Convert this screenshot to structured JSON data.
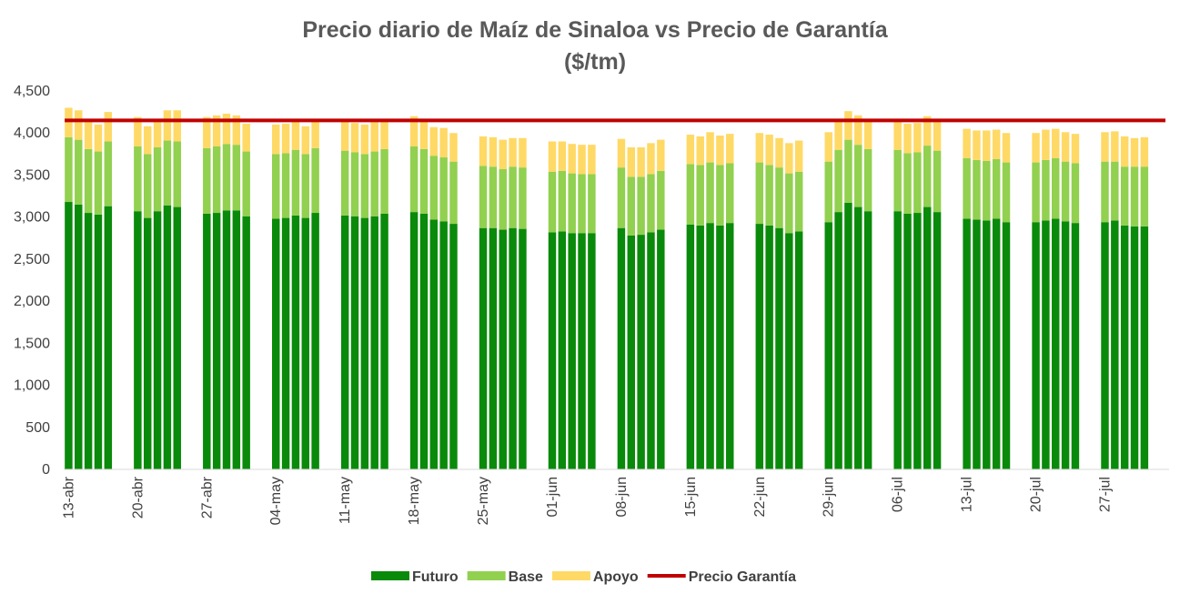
{
  "chart_data": {
    "type": "bar",
    "stacked": true,
    "title": "Precio diario de Maíz de Sinaloa vs Precio de Garantía",
    "subtitle": "($/tm)",
    "xlabel": "",
    "ylabel": "",
    "ylim": [
      0,
      4500
    ],
    "y_ticks": [
      "0",
      "500",
      "1,000",
      "1,500",
      "2,000",
      "2,500",
      "3,000",
      "3,500",
      "4,000",
      "4,500"
    ],
    "grid": false,
    "legend_position": "bottom",
    "x_tick_labels": [
      "13-abr",
      "20-abr",
      "27-abr",
      "04-may",
      "11-may",
      "18-may",
      "25-may",
      "01-jun",
      "08-jun",
      "15-jun",
      "22-jun",
      "29-jun",
      "06-jul",
      "13-jul",
      "20-jul",
      "27-jul"
    ],
    "colors": {
      "Futuro": "#0a8a0a",
      "Base": "#92d050",
      "Apoyo": "#ffd966",
      "Precio Garantía": "#c00000"
    },
    "weeks": [
      {
        "label": "13-abr",
        "futuro": [
          3180,
          3150,
          3050,
          3030,
          3130
        ],
        "base": [
          770,
          770,
          760,
          750,
          770
        ],
        "apoyo": [
          350,
          350,
          330,
          320,
          350
        ]
      },
      {
        "label": "20-abr",
        "futuro": [
          3070,
          2990,
          3070,
          3140,
          3120
        ],
        "base": [
          770,
          760,
          760,
          770,
          780
        ],
        "apoyo": [
          350,
          330,
          330,
          360,
          370
        ]
      },
      {
        "label": "27-abr",
        "futuro": [
          3040,
          3050,
          3080,
          3080,
          3010
        ],
        "base": [
          780,
          790,
          790,
          780,
          770
        ],
        "apoyo": [
          370,
          370,
          360,
          350,
          330
        ]
      },
      {
        "label": "04-may",
        "futuro": [
          2980,
          2990,
          3020,
          2990,
          3050
        ],
        "base": [
          770,
          770,
          780,
          760,
          770
        ],
        "apoyo": [
          350,
          350,
          350,
          330,
          350
        ]
      },
      {
        "label": "11-may",
        "futuro": [
          3020,
          3010,
          2990,
          3010,
          3040
        ],
        "base": [
          770,
          760,
          760,
          770,
          770
        ],
        "apoyo": [
          350,
          350,
          350,
          350,
          350
        ]
      },
      {
        "label": "18-may",
        "futuro": [
          3060,
          3040,
          2970,
          2950,
          2920
        ],
        "base": [
          780,
          770,
          760,
          760,
          740
        ],
        "apoyo": [
          360,
          340,
          340,
          350,
          340
        ]
      },
      {
        "label": "25-may",
        "futuro": [
          2870,
          2870,
          2850,
          2870,
          2860
        ],
        "base": [
          740,
          730,
          720,
          730,
          730
        ],
        "apoyo": [
          350,
          350,
          350,
          340,
          350
        ]
      },
      {
        "label": "01-jun",
        "futuro": [
          2820,
          2830,
          2810,
          2810,
          2810
        ],
        "base": [
          720,
          720,
          710,
          700,
          700
        ],
        "apoyo": [
          360,
          350,
          350,
          350,
          350
        ]
      },
      {
        "label": "08-jun",
        "futuro": [
          2870,
          2780,
          2790,
          2820,
          2850
        ],
        "base": [
          720,
          700,
          690,
          690,
          700
        ],
        "apoyo": [
          340,
          350,
          350,
          370,
          370
        ]
      },
      {
        "label": "15-jun",
        "futuro": [
          2910,
          2900,
          2930,
          2900,
          2930
        ],
        "base": [
          720,
          720,
          720,
          720,
          710
        ],
        "apoyo": [
          350,
          340,
          360,
          350,
          350
        ]
      },
      {
        "label": "22-jun",
        "futuro": [
          2920,
          2900,
          2870,
          2810,
          2830
        ],
        "base": [
          730,
          720,
          720,
          710,
          710
        ],
        "apoyo": [
          350,
          360,
          350,
          360,
          370
        ]
      },
      {
        "label": "29-jun",
        "futuro": [
          2940,
          3060,
          3170,
          3120,
          3070
        ],
        "base": [
          720,
          740,
          750,
          740,
          740
        ],
        "apoyo": [
          350,
          340,
          340,
          350,
          350
        ]
      },
      {
        "label": "06-jul",
        "futuro": [
          3070,
          3040,
          3050,
          3120,
          3060
        ],
        "base": [
          730,
          720,
          720,
          730,
          730
        ],
        "apoyo": [
          350,
          350,
          350,
          350,
          350
        ]
      },
      {
        "label": "13-jul",
        "futuro": [
          2980,
          2970,
          2960,
          2980,
          2940
        ],
        "base": [
          720,
          710,
          710,
          710,
          710
        ],
        "apoyo": [
          350,
          350,
          360,
          350,
          350
        ]
      },
      {
        "label": "20-jul",
        "futuro": [
          2940,
          2960,
          2980,
          2950,
          2930
        ],
        "base": [
          710,
          720,
          720,
          710,
          710
        ],
        "apoyo": [
          350,
          360,
          350,
          350,
          350
        ]
      },
      {
        "label": "27-jul",
        "futuro": [
          2940,
          2960,
          2900,
          2890,
          2890
        ],
        "base": [
          720,
          700,
          700,
          710,
          710
        ],
        "apoyo": [
          350,
          360,
          360,
          340,
          350
        ]
      }
    ],
    "precio_garantia": 4150,
    "legend": [
      {
        "name": "Futuro",
        "kind": "box"
      },
      {
        "name": "Base",
        "kind": "box"
      },
      {
        "name": "Apoyo",
        "kind": "box"
      },
      {
        "name": "Precio Garantía",
        "kind": "line"
      }
    ]
  }
}
